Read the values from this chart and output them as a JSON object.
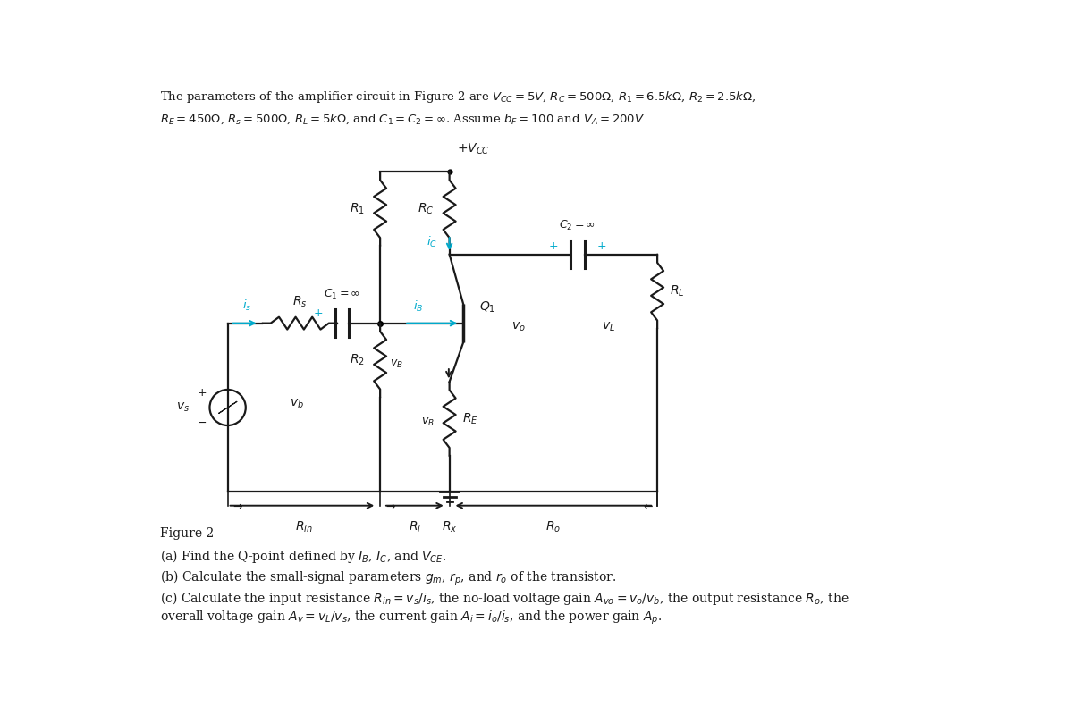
{
  "bg_color": "#ffffff",
  "text_color": "#1a1a1a",
  "cyan_color": "#00aacc",
  "line_color": "#1a1a1a",
  "title_line1": "The parameters of the amplifier circuit in Figure 2 are $V_{CC} = 5V$, $R_C = 500\\Omega$, $R_1 = 6.5k\\Omega$, $R_2 = 2.5k\\Omega$,",
  "title_line2": "$R_E = 450\\Omega$, $R_s = 500\\Omega$, $R_L = 5k\\Omega$, and $C_1 = C_2 = \\infty$. Assume $b_F = 100$ and $V_A = 200V$",
  "fig_label": "Figure 2",
  "qa": "(a) Find the Q-point defined by $I_B$, $I_C$, and $V_{CE}$.",
  "qb": "(b) Calculate the small-signal parameters $g_m$, $r_p$, and $r_o$ of the transistor.",
  "qc1": "(c) Calculate the input resistance $R_{in} = v_s/i_s$, the no-load voltage gain $A_{vo} = v_o/v_b$, the output resistance $R_o$, the",
  "qc2": "overall voltage gain $A_v = v_L/v_s$, the current gain $A_i = i_o/i_s$, and the power gain $A_p$."
}
